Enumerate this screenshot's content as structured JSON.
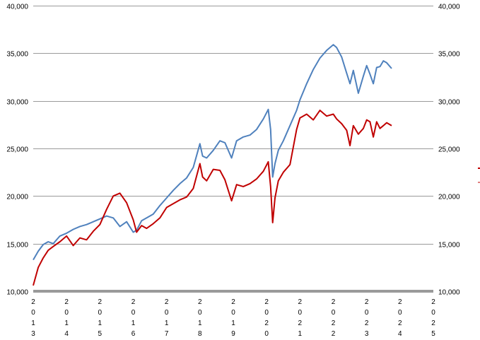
{
  "chart_data": {
    "type": "line",
    "title": "",
    "xlabel": "",
    "ylabel": "",
    "ylim": [
      10000,
      40000
    ],
    "y_ticks": [
      "10,000",
      "15,000",
      "20,000",
      "25,000",
      "30,000",
      "35,000",
      "40,000"
    ],
    "y_tick_values": [
      10000,
      15000,
      20000,
      25000,
      30000,
      35000,
      40000
    ],
    "x_ticks": [
      "2013",
      "2014",
      "2015",
      "2016",
      "2017",
      "2018",
      "2019",
      "2020",
      "2021",
      "2022",
      "2023",
      "2024",
      "2025"
    ],
    "xlim": [
      2013.0,
      2025.0
    ],
    "grid": true,
    "series": [
      {
        "color": "#4f81bd",
        "x": [
          2013.0,
          2013.15,
          2013.3,
          2013.45,
          2013.6,
          2013.8,
          2014.0,
          2014.2,
          2014.4,
          2014.6,
          2014.8,
          2015.0,
          2015.2,
          2015.4,
          2015.6,
          2015.8,
          2016.0,
          2016.1,
          2016.25,
          2016.4,
          2016.6,
          2016.8,
          2017.0,
          2017.2,
          2017.4,
          2017.6,
          2017.8,
          2018.0,
          2018.08,
          2018.2,
          2018.4,
          2018.6,
          2018.75,
          2018.95,
          2019.1,
          2019.3,
          2019.5,
          2019.7,
          2019.9,
          2020.05,
          2020.12,
          2020.18,
          2020.25,
          2020.35,
          2020.5,
          2020.7,
          2020.9,
          2021.0,
          2021.2,
          2021.4,
          2021.6,
          2021.8,
          2022.0,
          2022.1,
          2022.25,
          2022.4,
          2022.5,
          2022.6,
          2022.75,
          2022.9,
          2023.0,
          2023.1,
          2023.2,
          2023.3,
          2023.4,
          2023.5,
          2023.6,
          2023.75
        ],
        "y": [
          13300,
          14200,
          14900,
          15200,
          15000,
          15800,
          16100,
          16500,
          16800,
          17000,
          17300,
          17600,
          17900,
          17700,
          16800,
          17300,
          16200,
          16400,
          17400,
          17700,
          18100,
          19000,
          19800,
          20600,
          21300,
          21900,
          23000,
          25500,
          24200,
          24000,
          24800,
          25800,
          25600,
          24000,
          25800,
          26200,
          26400,
          27000,
          28100,
          29100,
          27000,
          22000,
          23400,
          24800,
          25800,
          27400,
          29000,
          30100,
          31800,
          33300,
          34500,
          35300,
          35900,
          35600,
          34600,
          32900,
          31800,
          33200,
          30800,
          32600,
          33700,
          32800,
          31800,
          33500,
          33600,
          34200,
          34000,
          33400
        ]
      },
      {
        "color": "#c00000",
        "x": [
          2013.0,
          2013.15,
          2013.3,
          2013.45,
          2013.6,
          2013.8,
          2014.0,
          2014.2,
          2014.4,
          2014.6,
          2014.8,
          2015.0,
          2015.2,
          2015.4,
          2015.6,
          2015.8,
          2016.0,
          2016.1,
          2016.25,
          2016.4,
          2016.6,
          2016.8,
          2017.0,
          2017.2,
          2017.4,
          2017.6,
          2017.8,
          2018.0,
          2018.08,
          2018.2,
          2018.4,
          2018.6,
          2018.75,
          2018.95,
          2019.1,
          2019.3,
          2019.5,
          2019.7,
          2019.9,
          2020.05,
          2020.12,
          2020.18,
          2020.25,
          2020.35,
          2020.5,
          2020.7,
          2020.9,
          2021.0,
          2021.2,
          2021.4,
          2021.6,
          2021.8,
          2022.0,
          2022.1,
          2022.25,
          2022.4,
          2022.5,
          2022.6,
          2022.75,
          2022.9,
          2023.0,
          2023.1,
          2023.2,
          2023.3,
          2023.4,
          2023.5,
          2023.6,
          2023.75
        ],
        "y": [
          10600,
          12500,
          13500,
          14300,
          14700,
          15200,
          15800,
          14800,
          15600,
          15400,
          16300,
          17000,
          18600,
          20000,
          20300,
          19300,
          17500,
          16200,
          16900,
          16600,
          17100,
          17700,
          18800,
          19200,
          19600,
          19900,
          20800,
          23400,
          22000,
          21600,
          22800,
          22700,
          21700,
          19500,
          21200,
          21000,
          21300,
          21800,
          22600,
          23600,
          21000,
          17200,
          19800,
          21600,
          22500,
          23300,
          27000,
          28200,
          28600,
          28000,
          29000,
          28400,
          28600,
          28100,
          27600,
          26900,
          25300,
          27400,
          26500,
          27100,
          28000,
          27800,
          26200,
          27800,
          27100,
          27400,
          27700,
          27400
        ]
      }
    ]
  }
}
